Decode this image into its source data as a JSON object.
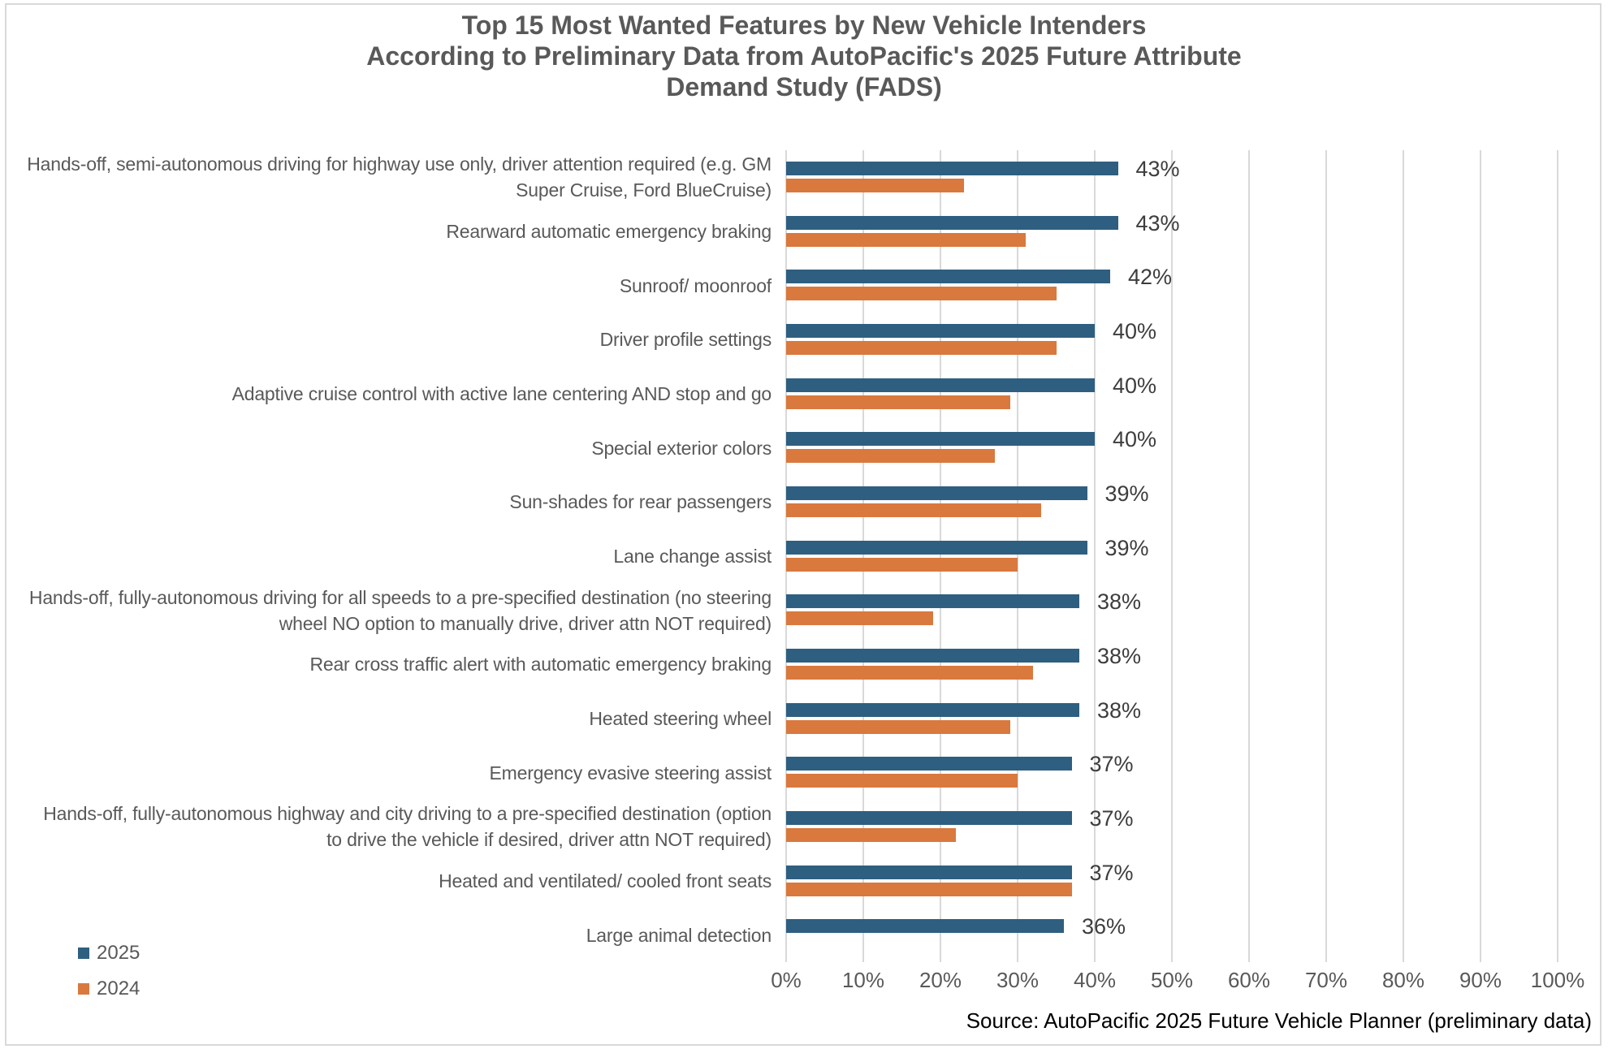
{
  "title": {
    "lines": [
      "Top 15 Most Wanted Features by New Vehicle Intenders",
      "According to Preliminary Data from AutoPacific's 2025 Future Attribute",
      "Demand Study (FADS)"
    ],
    "color": "#595959"
  },
  "legend": {
    "items": [
      {
        "label": "2025",
        "color": "#2e5f80"
      },
      {
        "label": "2024",
        "color": "#d9793e"
      }
    ]
  },
  "source_note": "Source: AutoPacific 2025 Future Vehicle Planner (preliminary data)",
  "colors": {
    "bar_2025": "#2e5f80",
    "bar_2024": "#d9793e",
    "gridline": "#d9d9d9",
    "text_gray": "#595959",
    "value_label": "#3d3d3d",
    "frame_border": "#d9d9d9"
  },
  "chart_data": {
    "type": "bar",
    "orientation": "horizontal-grouped",
    "title": "Top 15 Most Wanted Features by New Vehicle Intenders According to Preliminary Data from AutoPacific's 2025 Future Attribute Demand Study (FADS)",
    "xlabel": "",
    "ylabel": "",
    "xlim": [
      0,
      100
    ],
    "x_ticks": [
      "0%",
      "10%",
      "20%",
      "30%",
      "40%",
      "50%",
      "60%",
      "70%",
      "80%",
      "90%",
      "100%"
    ],
    "grid": true,
    "legend_position": "bottom-left",
    "categories": [
      "Hands-off, semi-autonomous driving for highway use only, driver attention required (e.g. GM Super Cruise, Ford BlueCruise)",
      "Rearward automatic emergency braking",
      "Sunroof/ moonroof",
      "Driver profile settings",
      "Adaptive cruise control with active lane centering AND stop and go",
      "Special exterior colors",
      "Sun-shades for rear passengers",
      "Lane change assist",
      "Hands-off, fully-autonomous driving for all speeds to a pre-specified destination (no steering wheel NO option to manually drive, driver attn NOT required)",
      "Rear cross traffic alert with automatic emergency braking",
      "Heated steering wheel",
      "Emergency evasive steering assist",
      "Hands-off, fully-autonomous highway and city driving to a pre-specified destination (option to drive the vehicle if desired, driver attn NOT required)",
      "Heated and ventilated/ cooled front seats",
      "Large animal detection"
    ],
    "category_lines": [
      [
        "Hands-off, semi-autonomous driving for highway use only, driver attention required (e.g. GM",
        "Super Cruise, Ford BlueCruise)"
      ],
      [
        "Rearward automatic emergency braking"
      ],
      [
        "Sunroof/ moonroof"
      ],
      [
        "Driver profile settings"
      ],
      [
        "Adaptive cruise control with active lane centering AND stop and go"
      ],
      [
        "Special exterior colors"
      ],
      [
        "Sun-shades for rear passengers"
      ],
      [
        "Lane change assist"
      ],
      [
        "Hands-off, fully-autonomous driving for all speeds to a pre-specified destination (no steering",
        "wheel NO option to manually drive, driver attn NOT required)"
      ],
      [
        "Rear cross traffic alert with automatic emergency braking"
      ],
      [
        "Heated steering wheel"
      ],
      [
        "Emergency evasive steering assist"
      ],
      [
        "Hands-off, fully-autonomous highway and city driving to a pre-specified destination (option",
        "to drive the vehicle if desired, driver attn NOT required)"
      ],
      [
        "Heated and ventilated/ cooled front seats"
      ],
      [
        "Large animal detection"
      ]
    ],
    "series": [
      {
        "name": "2025",
        "color": "#2e5f80",
        "values": [
          43,
          43,
          42,
          40,
          40,
          40,
          39,
          39,
          38,
          38,
          38,
          37,
          37,
          37,
          36
        ],
        "data_labels": [
          "43%",
          "43%",
          "42%",
          "40%",
          "40%",
          "40%",
          "39%",
          "39%",
          "38%",
          "38%",
          "38%",
          "37%",
          "37%",
          "37%",
          "36%"
        ]
      },
      {
        "name": "2024",
        "color": "#d9793e",
        "values": [
          23,
          31,
          35,
          35,
          29,
          27,
          33,
          30,
          19,
          32,
          29,
          30,
          22,
          37,
          null
        ]
      }
    ]
  }
}
